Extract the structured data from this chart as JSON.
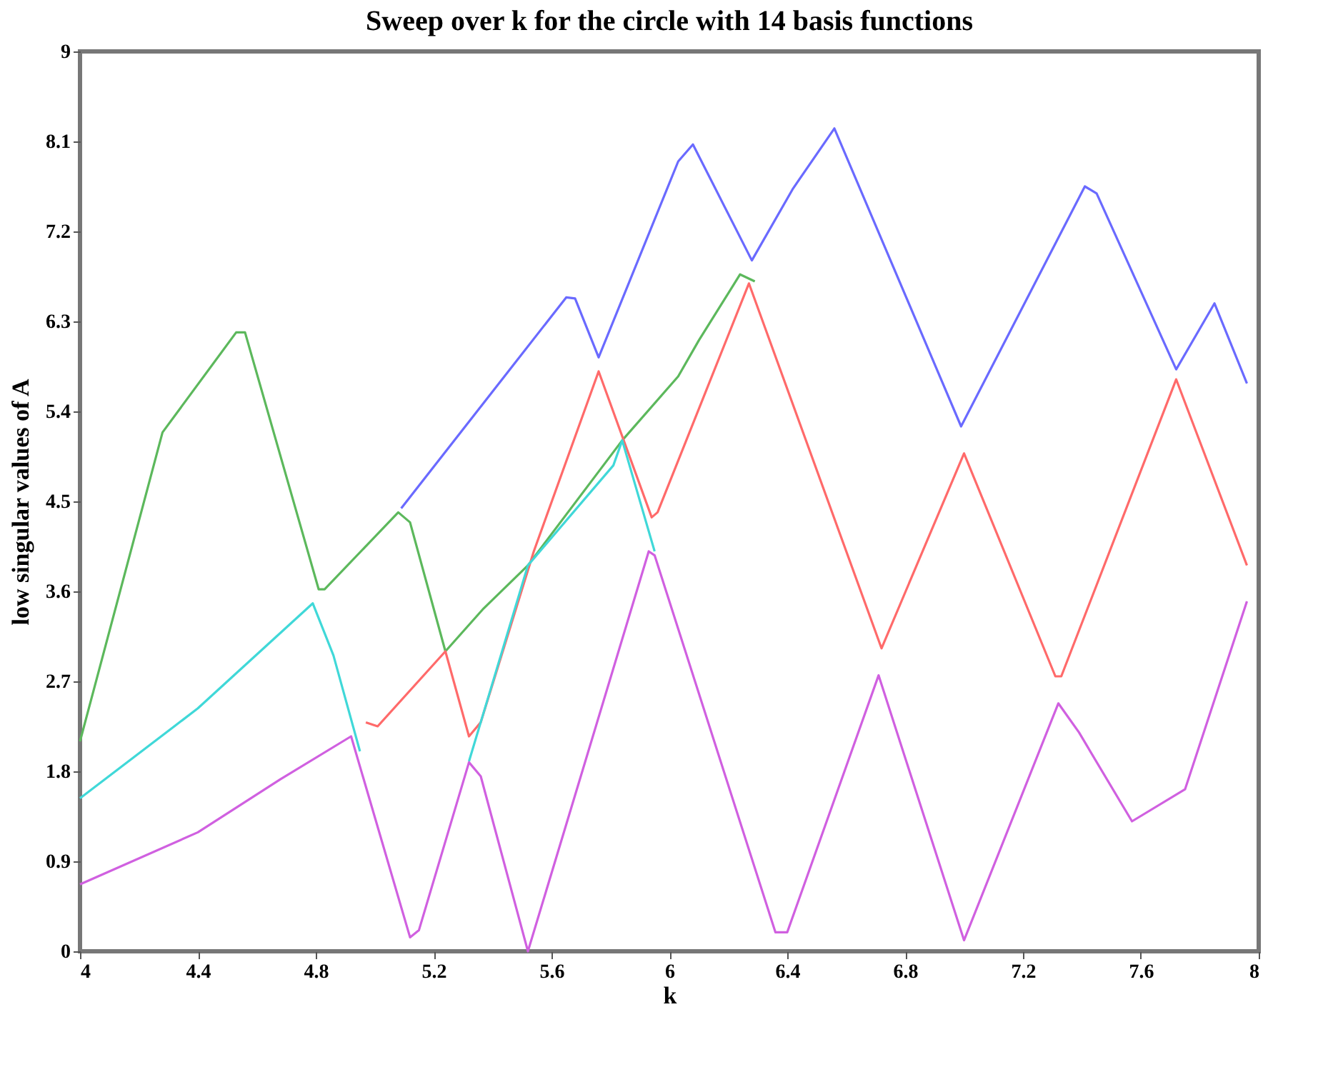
{
  "chart_data": {
    "type": "line",
    "title": "Sweep over k for the circle with 14 basis functions",
    "xlabel": "k",
    "ylabel": "low singular values of A",
    "xlim": [
      4,
      8
    ],
    "xticks": [
      4,
      4.4,
      4.8,
      5.2,
      5.6,
      6,
      6.4,
      6.8,
      7.2,
      7.6,
      8
    ],
    "ylim": [
      0,
      9
    ],
    "yticks": [
      0,
      0.9,
      1.8,
      2.7,
      3.6,
      4.5,
      5.4,
      6.3,
      7.2,
      8.1,
      9
    ],
    "grid": false,
    "legend": false,
    "marker": "none",
    "line_style": "solid",
    "series": [
      {
        "color": "#6a6aff",
        "x": [
          5.09,
          5.65,
          5.68,
          5.76,
          6.03,
          6.08,
          6.28,
          6.42,
          6.56,
          6.99,
          7.41,
          7.45,
          7.72,
          7.85,
          7.96
        ],
        "values": [
          4.43,
          6.54,
          6.53,
          5.94,
          7.9,
          8.07,
          6.91,
          7.63,
          8.23,
          5.25,
          7.65,
          7.58,
          5.82,
          6.48,
          5.68
        ]
      },
      {
        "color": "#5cb85c",
        "x": [
          4.0,
          4.28,
          4.53,
          4.56,
          4.81,
          4.83,
          5.08,
          5.12,
          5.24,
          5.37,
          5.52,
          5.84,
          6.03,
          6.1,
          6.24,
          6.29
        ],
        "values": [
          2.1,
          5.19,
          6.19,
          6.19,
          3.62,
          3.62,
          4.39,
          4.29,
          3.0,
          3.43,
          3.86,
          5.11,
          5.75,
          6.11,
          6.77,
          6.7
        ]
      },
      {
        "color": "#ff6a6a",
        "x": [
          4.97,
          5.01,
          5.24,
          5.32,
          5.36,
          5.54,
          5.76,
          5.94,
          5.96,
          6.27,
          6.72,
          7.0,
          7.31,
          7.33,
          7.72,
          7.96
        ],
        "values": [
          2.29,
          2.25,
          3.0,
          2.15,
          2.29,
          4.0,
          5.8,
          4.34,
          4.39,
          6.68,
          3.03,
          4.98,
          2.75,
          2.75,
          5.72,
          3.86
        ]
      },
      {
        "color": "#40d8d8",
        "x": [
          4.0,
          4.4,
          4.79,
          4.86,
          4.95,
          5.1,
          5.32,
          5.52,
          5.81,
          5.84,
          5.95
        ],
        "values": [
          1.53,
          2.43,
          3.48,
          2.96,
          2.0,
          null,
          1.9,
          3.86,
          4.86,
          5.11,
          4.0
        ]
      },
      {
        "color": "#d060e0",
        "x": [
          4.0,
          4.4,
          4.68,
          4.92,
          5.12,
          5.15,
          5.32,
          5.36,
          5.52,
          5.93,
          5.95,
          6.36,
          6.4,
          6.71,
          7.0,
          7.32,
          7.39,
          7.57,
          7.75,
          7.96
        ],
        "values": [
          0.67,
          1.19,
          1.72,
          2.15,
          0.14,
          0.21,
          1.89,
          1.75,
          0.0,
          4.0,
          3.96,
          0.19,
          0.19,
          2.76,
          0.11,
          2.48,
          2.19,
          1.3,
          1.62,
          3.5
        ]
      }
    ]
  }
}
